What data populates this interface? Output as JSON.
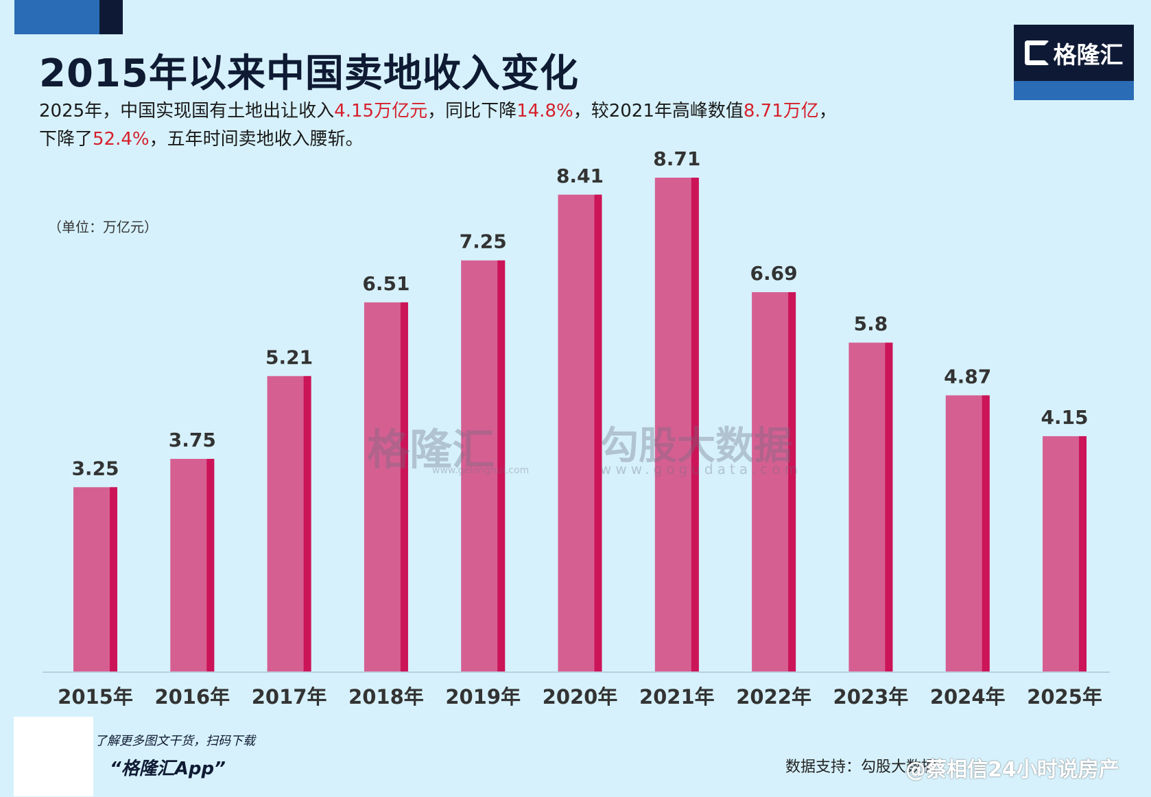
{
  "title": "2015年以来中国卖地收入变化",
  "subtitle": {
    "line1": [
      {
        "t": "2025年，中国实现国有土地出让收入"
      },
      {
        "t": "4.15万亿元",
        "red": true
      },
      {
        "t": "，同比下降"
      },
      {
        "t": "14.8%",
        "red": true
      },
      {
        "t": "，较2021年高峰数值"
      },
      {
        "t": "8.71万亿",
        "red": true
      },
      {
        "t": "，"
      }
    ],
    "line2": [
      {
        "t": "下降了"
      },
      {
        "t": "52.4%",
        "red": true
      },
      {
        "t": "，五年时间卖地收入腰斩。"
      }
    ]
  },
  "logo_text": "格隆汇",
  "watermark": {
    "brand1": "格隆汇",
    "url1": "www.gelonghui.com",
    "brand2": "勾股大数据",
    "url2": "www.gogudata.com"
  },
  "footer": {
    "qr_caption": "了解更多图文干货，扫码下载",
    "app_name": "“格隆汇App”",
    "source": "数据支持：勾股大数据",
    "weibo": "@蔡相信24小时说房产"
  },
  "colors": {
    "bar": "#d65f92",
    "bar_edge": "#cc1458",
    "accent_red": "#d61f2b"
  },
  "chart_data": {
    "type": "bar",
    "unit_label": "（单位：万亿元）",
    "categories": [
      "2015年",
      "2016年",
      "2017年",
      "2018年",
      "2019年",
      "2020年",
      "2021年",
      "2022年",
      "2023年",
      "2024年",
      "2025年"
    ],
    "values": [
      3.25,
      3.75,
      5.21,
      6.51,
      7.25,
      8.41,
      8.71,
      6.69,
      5.8,
      4.87,
      4.15
    ],
    "value_labels": [
      "3.25",
      "3.75",
      "5.21",
      "6.51",
      "7.25",
      "8.41",
      "8.71",
      "6.69",
      "5.8",
      "4.87",
      "4.15"
    ],
    "ylim": [
      0,
      8.71
    ],
    "grid": false
  }
}
